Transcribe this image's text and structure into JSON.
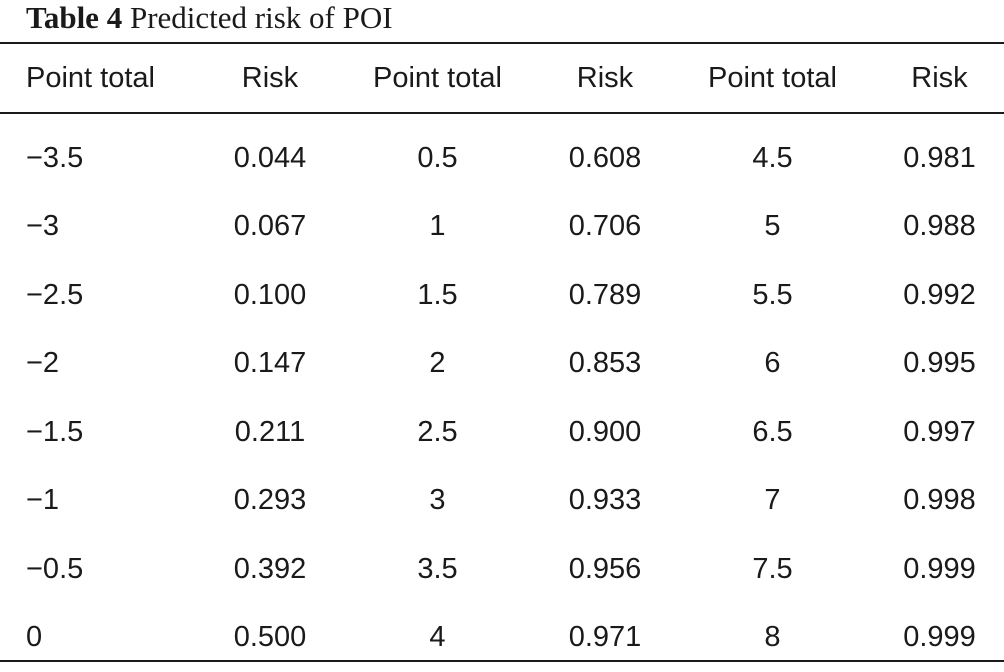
{
  "caption": {
    "label": "Table 4",
    "title": "Predicted risk of POI"
  },
  "table": {
    "headers": [
      "Point total",
      "Risk",
      "Point total",
      "Risk",
      "Point total",
      "Risk"
    ],
    "rows": [
      [
        "−3.5",
        "0.044",
        "0.5",
        "0.608",
        "4.5",
        "0.981"
      ],
      [
        "−3",
        "0.067",
        "1",
        "0.706",
        "5",
        "0.988"
      ],
      [
        "−2.5",
        "0.100",
        "1.5",
        "0.789",
        "5.5",
        "0.992"
      ],
      [
        "−2",
        "0.147",
        "2",
        "0.853",
        "6",
        "0.995"
      ],
      [
        "−1.5",
        "0.211",
        "2.5",
        "0.900",
        "6.5",
        "0.997"
      ],
      [
        "−1",
        "0.293",
        "3",
        "0.933",
        "7",
        "0.998"
      ],
      [
        "−0.5",
        "0.392",
        "3.5",
        "0.956",
        "7.5",
        "0.999"
      ],
      [
        "0",
        "0.500",
        "4",
        "0.971",
        "8",
        "0.999"
      ]
    ]
  }
}
